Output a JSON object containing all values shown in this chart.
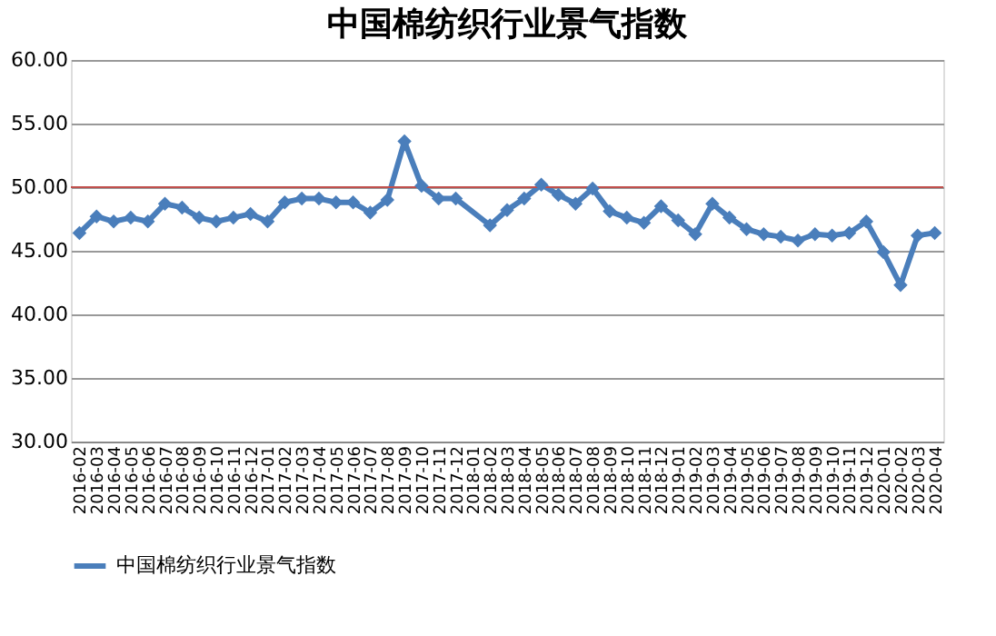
{
  "chart_data": {
    "type": "line",
    "title": "中国棉纺织行业景气指数",
    "categories": [
      "2016-02",
      "2016-03",
      "2016-04",
      "2016-05",
      "2016-06",
      "2016-07",
      "2016-08",
      "2016-09",
      "2016-10",
      "2016-11",
      "2016-12",
      "2017-01",
      "2017-02",
      "2017-03",
      "2017-04",
      "2017-05",
      "2017-06",
      "2017-07",
      "2017-08",
      "2017-09",
      "2017-10",
      "2017-11",
      "2017-12",
      "2018-01",
      "2018-02",
      "2018-03",
      "2018-04",
      "2018-05",
      "2018-06",
      "2018-07",
      "2018-08",
      "2018-09",
      "2018-10",
      "2018-11",
      "2018-12",
      "2019-01",
      "2019-02",
      "2019-03",
      "2019-04",
      "2019-05",
      "2019-06",
      "2019-07",
      "2019-08",
      "2019-09",
      "2019-10",
      "2019-11",
      "2019-12",
      "2020-01",
      "2020-02",
      "2020-03",
      "2020-04"
    ],
    "series": [
      {
        "name": "中国棉纺织行业景气指数",
        "color": "#4a7ebb",
        "values": [
          46.4,
          47.7,
          47.3,
          47.6,
          47.3,
          48.7,
          48.4,
          47.6,
          47.3,
          47.6,
          47.9,
          47.3,
          48.8,
          49.1,
          49.1,
          48.8,
          48.8,
          48.0,
          49.0,
          53.6,
          50.1,
          49.1,
          49.1,
          null,
          47.0,
          48.2,
          49.1,
          50.2,
          49.4,
          48.7,
          49.9,
          48.1,
          47.6,
          47.2,
          48.5,
          47.4,
          46.3,
          48.7,
          47.6,
          46.7,
          46.3,
          46.1,
          45.8,
          46.3,
          46.2,
          46.4,
          47.3,
          44.9,
          42.3,
          46.2,
          46.4
        ]
      }
    ],
    "ylim": [
      30,
      60
    ],
    "yticks": [
      {
        "value": 30,
        "label": "30.00"
      },
      {
        "value": 35,
        "label": "35.00"
      },
      {
        "value": 40,
        "label": "40.00"
      },
      {
        "value": 45,
        "label": "45.00"
      },
      {
        "value": 50,
        "label": "50.00"
      },
      {
        "value": 55,
        "label": "55.00"
      },
      {
        "value": 60,
        "label": "60.00"
      }
    ],
    "ref_lines": [
      {
        "axis": "y",
        "value": 50,
        "color": "#c0504d"
      }
    ],
    "grid": "y",
    "legend": "bottom",
    "marker": "diamond",
    "line_style": "solid"
  }
}
